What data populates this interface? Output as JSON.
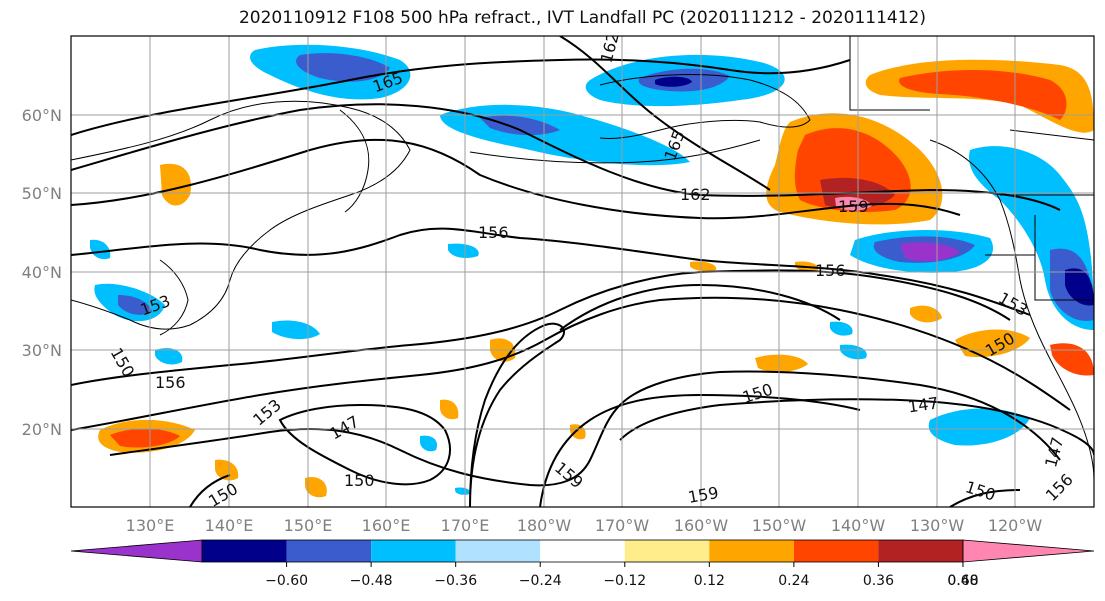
{
  "title": "2020110912 F108 500 hPa refract., IVT Landfall PC (2020111212 - 2020111412)",
  "map": {
    "lat_labels": [
      "60°N",
      "50°N",
      "40°N",
      "30°N",
      "20°N"
    ],
    "lon_labels": [
      "130°E",
      "140°E",
      "150°E",
      "160°E",
      "170°E",
      "180°W",
      "170°W",
      "160°W",
      "150°W",
      "140°W",
      "130°W",
      "120°W"
    ],
    "contour_labels": [
      "165",
      "162",
      "165",
      "162",
      "156",
      "159",
      "156",
      "153",
      "150",
      "156",
      "153",
      "150",
      "147",
      "150",
      "150",
      "159",
      "159",
      "147",
      "150",
      "147",
      "156",
      "150",
      "153"
    ]
  },
  "colorbar": {
    "tick_labels": [
      "−0.60",
      "−0.48",
      "−0.36",
      "−0.24",
      "−0.12",
      "0.12",
      "0.24",
      "0.36",
      "0.48",
      "0.60"
    ],
    "colors": [
      "#9933cc",
      "#00008b",
      "#3b5ccc",
      "#00bfff",
      "#b0e2ff",
      "#ffffff",
      "#ffec8b",
      "#ffa500",
      "#ff4500",
      "#b22222",
      "#ff86b0"
    ]
  }
}
